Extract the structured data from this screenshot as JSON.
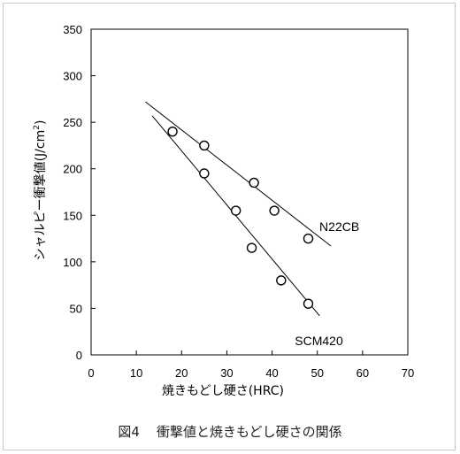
{
  "chart_data": {
    "type": "scatter",
    "xlabel": "焼きもどし硬さ(HRC)",
    "ylabel": "シャルピー衝撃値(J/cm",
    "ylabel_sup": "2",
    "ylabel_close": ")",
    "xlim": [
      0,
      70
    ],
    "ylim": [
      0,
      350
    ],
    "xticks": [
      0,
      10,
      20,
      30,
      40,
      50,
      60,
      70
    ],
    "yticks": [
      0,
      50,
      100,
      150,
      200,
      250,
      300,
      350
    ],
    "grid": false,
    "series": [
      {
        "name": "N22CB",
        "points": [
          {
            "x": 25,
            "y": 225
          },
          {
            "x": 36,
            "y": 185
          },
          {
            "x": 40.5,
            "y": 155
          },
          {
            "x": 48,
            "y": 125
          }
        ],
        "trendline": [
          {
            "x": 12,
            "y": 272
          },
          {
            "x": 53,
            "y": 117
          }
        ]
      },
      {
        "name": "SCM420",
        "points": [
          {
            "x": 18,
            "y": 240
          },
          {
            "x": 25,
            "y": 195
          },
          {
            "x": 32,
            "y": 155
          },
          {
            "x": 35.5,
            "y": 115
          },
          {
            "x": 42,
            "y": 80
          },
          {
            "x": 48,
            "y": 55
          }
        ],
        "trendline": [
          {
            "x": 13.5,
            "y": 257
          },
          {
            "x": 50.5,
            "y": 42
          }
        ]
      }
    ]
  },
  "caption": {
    "figure_number": "図4",
    "text": "衝撃値と焼きもどし硬さの関係"
  }
}
